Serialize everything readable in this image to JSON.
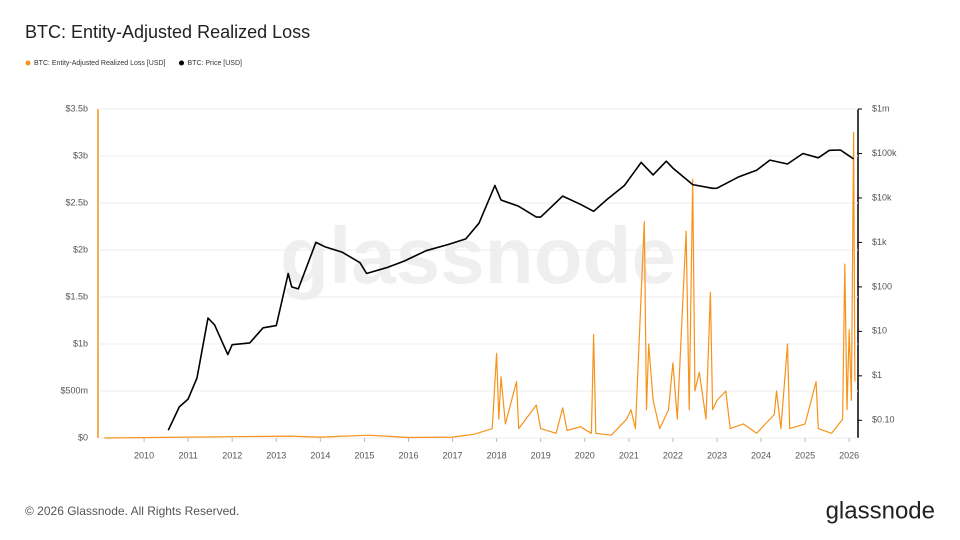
{
  "chart_data": {
    "type": "line",
    "title": "BTC: Entity-Adjusted Realized Loss",
    "watermark": "glassnode",
    "footer": "© 2026 Glassnode. All Rights Reserved.",
    "logo": "glassnode",
    "xlim": [
      2009,
      2026.2
    ],
    "xticks": [
      2010,
      2011,
      2012,
      2013,
      2014,
      2015,
      2016,
      2017,
      2018,
      2019,
      2020,
      2021,
      2022,
      2023,
      2024,
      2025,
      2026
    ],
    "ylim": [
      0,
      3500000000
    ],
    "yticks": [
      {
        "value": 0,
        "label": "$0"
      },
      {
        "value": 500000000,
        "label": "$500m"
      },
      {
        "value": 1000000000,
        "label": "$1b"
      },
      {
        "value": 1500000000,
        "label": "$1.5b"
      },
      {
        "value": 2000000000,
        "label": "$2b"
      },
      {
        "value": 2500000000,
        "label": "$2.5b"
      },
      {
        "value": 3000000000,
        "label": "$3b"
      },
      {
        "value": 3500000000,
        "label": "$3.5b"
      }
    ],
    "y2lim": [
      0.04,
      1000000
    ],
    "y2scale": "log",
    "y2ticks": [
      {
        "value": 0.1,
        "label": "$0.10"
      },
      {
        "value": 1,
        "label": "$1"
      },
      {
        "value": 10,
        "label": "$10"
      },
      {
        "value": 100,
        "label": "$100"
      },
      {
        "value": 1000,
        "label": "$1k"
      },
      {
        "value": 10000,
        "label": "$10k"
      },
      {
        "value": 100000,
        "label": "$100k"
      },
      {
        "value": 1000000,
        "label": "$1m"
      }
    ],
    "grid": true,
    "legend": "top-left",
    "series": [
      {
        "name": "BTC: Entity-Adjusted Realized Loss [USD]",
        "color": "#f7931a",
        "axis": "y",
        "x": [
          2009.1,
          2013.3,
          2014.0,
          2015.1,
          2016.0,
          2017.0,
          2017.5,
          2017.9,
          2018.0,
          2018.05,
          2018.1,
          2018.2,
          2018.45,
          2018.5,
          2018.9,
          2019.0,
          2019.35,
          2019.5,
          2019.6,
          2019.9,
          2020.15,
          2020.2,
          2020.25,
          2020.6,
          2020.95,
          2021.05,
          2021.15,
          2021.35,
          2021.4,
          2021.45,
          2021.55,
          2021.7,
          2021.9,
          2022.0,
          2022.1,
          2022.3,
          2022.37,
          2022.45,
          2022.5,
          2022.6,
          2022.75,
          2022.85,
          2022.9,
          2023.0,
          2023.2,
          2023.3,
          2023.6,
          2023.9,
          2024.3,
          2024.35,
          2024.45,
          2024.6,
          2024.65,
          2025.0,
          2025.25,
          2025.3,
          2025.6,
          2025.85,
          2025.9,
          2025.95,
          2026.0,
          2026.05,
          2026.1,
          2026.13
        ],
        "values": [
          0,
          20000000,
          10000000,
          30000000,
          5000000,
          10000000,
          40000000,
          100000000,
          900000000,
          200000000,
          650000000,
          150000000,
          600000000,
          100000000,
          350000000,
          100000000,
          50000000,
          320000000,
          80000000,
          120000000,
          50000000,
          1100000000,
          50000000,
          30000000,
          200000000,
          300000000,
          100000000,
          2300000000,
          300000000,
          1000000000,
          400000000,
          100000000,
          300000000,
          800000000,
          200000000,
          2200000000,
          300000000,
          2750000000,
          500000000,
          700000000,
          200000000,
          1550000000,
          300000000,
          400000000,
          500000000,
          100000000,
          150000000,
          50000000,
          250000000,
          500000000,
          100000000,
          1000000000,
          100000000,
          150000000,
          600000000,
          100000000,
          50000000,
          200000000,
          1850000000,
          300000000,
          1150000000,
          400000000,
          3250000000,
          600000000
        ]
      },
      {
        "name": "BTC: Price [USD]",
        "color": "#000000",
        "axis": "y2",
        "x": [
          2010.55,
          2010.8,
          2011.0,
          2011.2,
          2011.45,
          2011.6,
          2011.9,
          2012.0,
          2012.4,
          2012.7,
          2013.0,
          2013.27,
          2013.35,
          2013.5,
          2013.9,
          2014.1,
          2014.5,
          2014.9,
          2015.05,
          2015.5,
          2015.9,
          2016.4,
          2016.9,
          2017.3,
          2017.6,
          2017.96,
          2018.1,
          2018.5,
          2018.9,
          2019.0,
          2019.5,
          2019.9,
          2020.2,
          2020.5,
          2020.9,
          2021.28,
          2021.55,
          2021.85,
          2022.0,
          2022.45,
          2022.9,
          2023.0,
          2023.5,
          2023.9,
          2024.2,
          2024.6,
          2024.95,
          2025.3,
          2025.55,
          2025.8,
          2026.0,
          2026.1
        ],
        "values": [
          0.06,
          0.2,
          0.3,
          0.9,
          20,
          14,
          3,
          5,
          5.5,
          12,
          13.5,
          200,
          100,
          90,
          1000,
          800,
          600,
          350,
          200,
          270,
          380,
          650,
          900,
          1200,
          2700,
          19000,
          9000,
          6500,
          3700,
          3700,
          11000,
          7200,
          5000,
          9200,
          19000,
          63000,
          33000,
          67000,
          47000,
          20000,
          16500,
          16600,
          30000,
          42000,
          71000,
          58000,
          100000,
          80000,
          118000,
          120000,
          88000,
          75000
        ]
      }
    ]
  }
}
